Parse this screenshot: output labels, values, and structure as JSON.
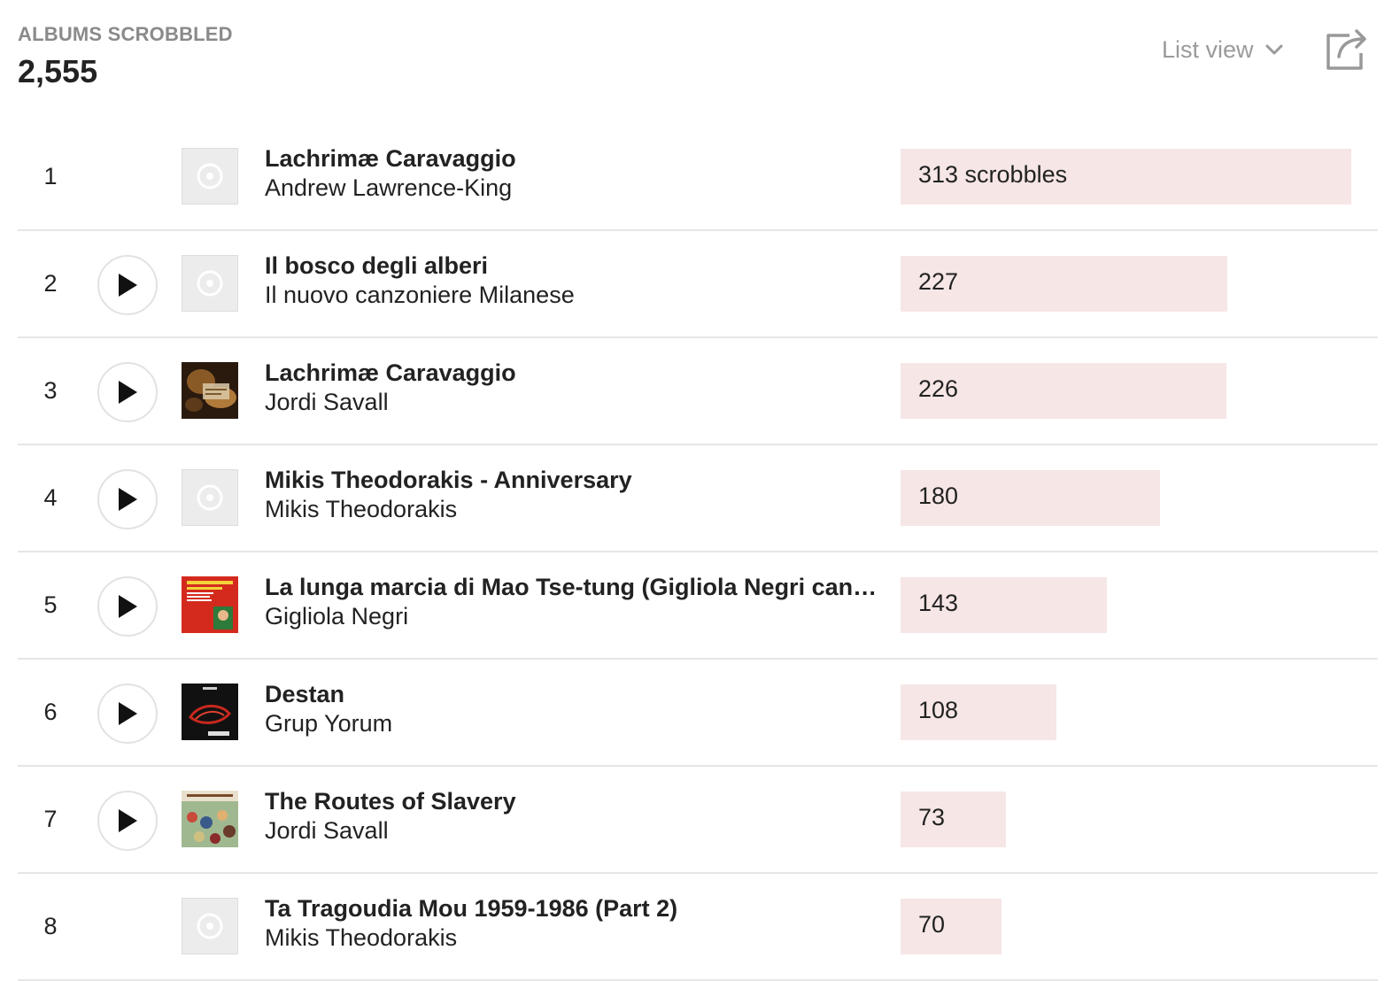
{
  "header": {
    "label": "ALBUMS SCROBBLED",
    "count": "2,555",
    "view_label": "List view",
    "share_icon": "share-icon"
  },
  "chart_max": 313,
  "rows": [
    {
      "rank": "1",
      "title": "Lachrimæ Caravaggio",
      "artist": "Andrew Lawrence-King",
      "scrobbles": 313,
      "count_label": "313 scrobbles",
      "has_play": false,
      "cover": "placeholder"
    },
    {
      "rank": "2",
      "title": "Il bosco degli alberi",
      "artist": "Il nuovo canzoniere Milanese",
      "scrobbles": 227,
      "count_label": "227",
      "has_play": true,
      "cover": "placeholder"
    },
    {
      "rank": "3",
      "title": "Lachrimæ Caravaggio",
      "artist": "Jordi Savall",
      "scrobbles": 226,
      "count_label": "226",
      "has_play": true,
      "cover": "art-1"
    },
    {
      "rank": "4",
      "title": "Mikis Theodorakis - Anniversary",
      "artist": "Mikis Theodorakis",
      "scrobbles": 180,
      "count_label": "180",
      "has_play": true,
      "cover": "placeholder"
    },
    {
      "rank": "5",
      "title": "La lunga marcia di Mao Tse-tung (Gigliola Negri canta l...",
      "artist": "Gigliola Negri",
      "scrobbles": 143,
      "count_label": "143",
      "has_play": true,
      "cover": "art-2"
    },
    {
      "rank": "6",
      "title": "Destan",
      "artist": "Grup Yorum",
      "scrobbles": 108,
      "count_label": "108",
      "has_play": true,
      "cover": "art-3"
    },
    {
      "rank": "7",
      "title": "The Routes of Slavery",
      "artist": "Jordi Savall",
      "scrobbles": 73,
      "count_label": "73",
      "has_play": true,
      "cover": "art-4"
    },
    {
      "rank": "8",
      "title": "Ta Tragoudia Mou 1959-1986 (Part 2)",
      "artist": "Mikis Theodorakis",
      "scrobbles": 70,
      "count_label": "70",
      "has_play": false,
      "cover": "placeholder"
    }
  ],
  "colors": {
    "bar": "#f7e6e6",
    "muted": "#8a8a8a",
    "text": "#222222"
  }
}
